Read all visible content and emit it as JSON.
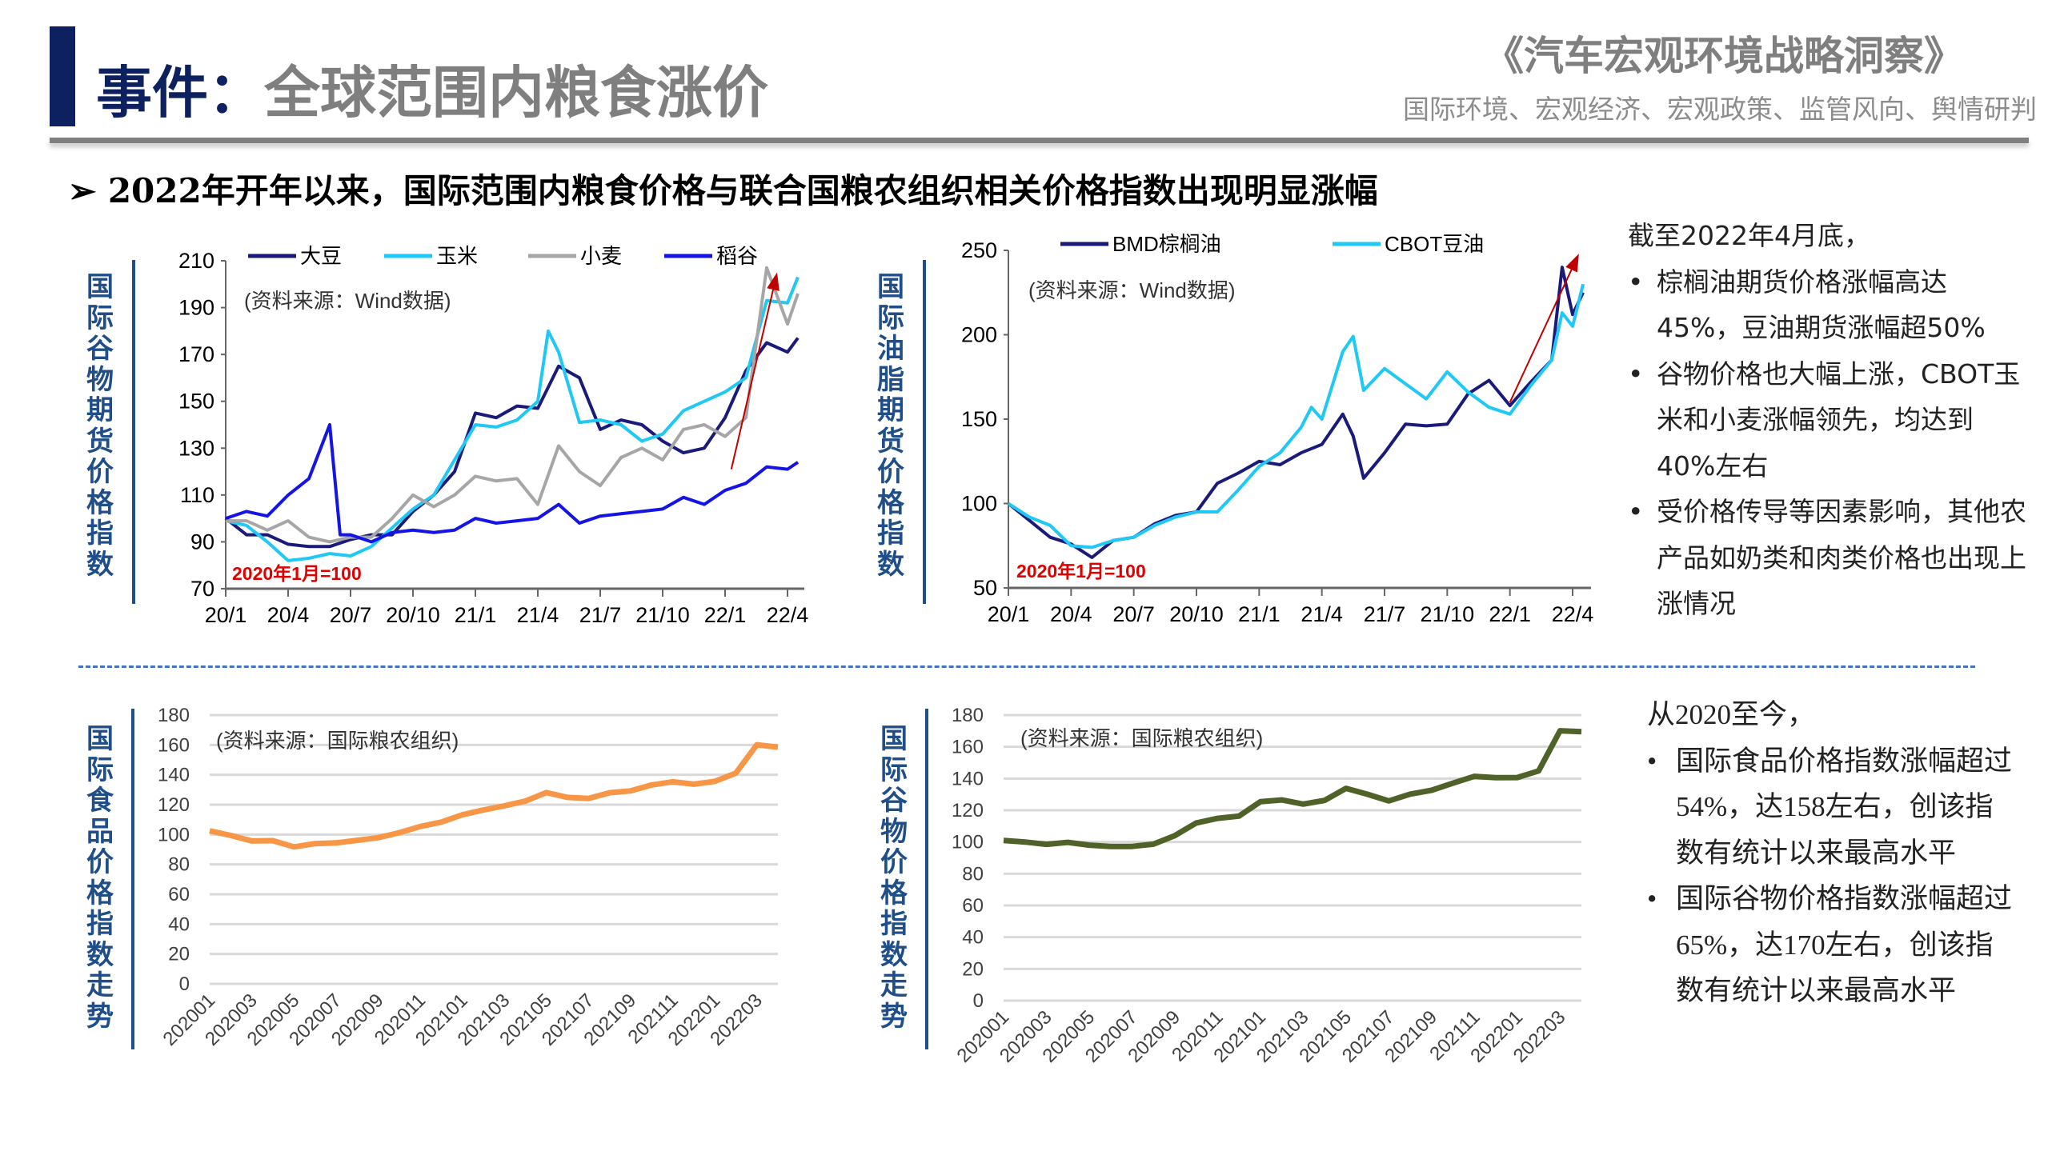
{
  "header": {
    "title_prefix": "事件：",
    "title_main": "全球范围内粮食涨价",
    "brand": "《汽车宏观环境战略洞察》",
    "brand_sub": "国际环境、宏观经济、宏观政策、监管风向、舆情研判"
  },
  "headline": "➢  2022年开年以来，国际范围内粮食价格与联合国粮农组织相关价格指数出现明显涨幅",
  "colors": {
    "navy": "#0d2160",
    "label_blue": "#1f4e89",
    "soy": "#1a1a7a",
    "corn": "#1fc8f5",
    "wheat": "#a6a6a6",
    "rice": "#1414e6",
    "food": "#f79646",
    "cereal": "#4f6228",
    "arrow": "#c00000"
  },
  "right_notes": {
    "intro": "截至2022年4月底，",
    "bullets": [
      "棕榈油期货价格涨幅高达45%，豆油期货涨幅超50%",
      "谷物价格也大幅上涨，CBOT玉米和小麦涨幅领先，均达到40%左右",
      "受价格传导等因素影响，其他农产品如奶类和肉类价格也出现上涨情况"
    ]
  },
  "bottom_notes": {
    "intro": "从2020至今，",
    "bullets": [
      "国际食品价格指数涨幅超过54%，达158左右，创该指数有统计以来最高水平",
      "国际谷物价格指数涨幅超过65%，达170左右，创该指数有统计以来最高水平"
    ]
  },
  "chart_data": [
    {
      "id": "grain",
      "type": "line",
      "ylabel": "国际谷物期货价格指数",
      "source": "(资料来源：Wind数据)",
      "annotation": "2020年1月=100",
      "ylim": [
        70,
        210
      ],
      "yticks": [
        70,
        90,
        110,
        130,
        150,
        170,
        190,
        210
      ],
      "xticks": [
        "20/1",
        "20/4",
        "20/7",
        "20/10",
        "21/1",
        "21/4",
        "21/7",
        "21/10",
        "22/1",
        "22/4"
      ],
      "x_unit": "months since 20/1 (tick labels every 3 months)",
      "legend": "top",
      "grid": false,
      "series": [
        {
          "name": "大豆",
          "color": "#1a1a7a",
          "x": [
            0,
            1,
            2,
            3,
            4,
            5,
            6,
            7,
            8,
            9,
            10,
            11,
            12,
            13,
            14,
            15,
            16,
            17,
            18,
            19,
            20,
            21,
            22,
            23,
            24,
            25,
            26,
            27,
            27.5
          ],
          "values": [
            100,
            93,
            93,
            89,
            88,
            88,
            91,
            93,
            93,
            103,
            110,
            120,
            145,
            143,
            148,
            147,
            165,
            160,
            138,
            142,
            140,
            133,
            128,
            130,
            143,
            163,
            175,
            171,
            177
          ]
        },
        {
          "name": "玉米",
          "color": "#1fc8f5",
          "x": [
            0,
            1,
            2,
            3,
            4,
            5,
            6,
            7,
            8,
            9,
            10,
            11,
            12,
            13,
            14,
            15,
            15.5,
            16,
            17,
            18,
            19,
            20,
            21,
            22,
            23,
            24,
            25,
            26,
            27,
            27.5
          ],
          "values": [
            99,
            97,
            90,
            82,
            83,
            85,
            84,
            88,
            96,
            104,
            110,
            125,
            140,
            139,
            142,
            150,
            180,
            171,
            141,
            142,
            140,
            133,
            136,
            146,
            150,
            154,
            160,
            193,
            192,
            203
          ]
        },
        {
          "name": "小麦",
          "color": "#a6a6a6",
          "x": [
            0,
            1,
            2,
            3,
            4,
            5,
            6,
            7,
            8,
            9,
            10,
            11,
            12,
            13,
            14,
            15,
            16,
            17,
            18,
            19,
            20,
            21,
            22,
            23,
            24,
            25,
            26,
            27,
            27.5
          ],
          "values": [
            99,
            99,
            95,
            99,
            92,
            90,
            92,
            92,
            100,
            110,
            105,
            110,
            118,
            116,
            117,
            106,
            131,
            120,
            114,
            126,
            130,
            125,
            138,
            140,
            135,
            143,
            207,
            183,
            196
          ]
        },
        {
          "name": "稻谷",
          "color": "#1414e6",
          "x": [
            0,
            1,
            2,
            3,
            4,
            5,
            5.5,
            6,
            7,
            8,
            9,
            10,
            11,
            12,
            13,
            14,
            15,
            16,
            17,
            18,
            19,
            20,
            21,
            22,
            23,
            24,
            25,
            26,
            27,
            27.5
          ],
          "values": [
            100,
            103,
            101,
            110,
            117,
            140,
            93,
            93,
            90,
            94,
            95,
            94,
            95,
            100,
            98,
            99,
            100,
            106,
            98,
            101,
            102,
            103,
            104,
            109,
            106,
            112,
            115,
            122,
            121,
            124
          ]
        }
      ],
      "arrow": {
        "from": [
          24.3,
          121
        ],
        "to": [
          26.5,
          205
        ]
      }
    },
    {
      "id": "oil",
      "type": "line",
      "ylabel": "国际油脂期货价格指数",
      "source": "(资料来源：Wind数据)",
      "annotation": "2020年1月=100",
      "ylim": [
        50,
        250
      ],
      "yticks": [
        50,
        100,
        150,
        200,
        250
      ],
      "xticks": [
        "20/1",
        "20/4",
        "20/7",
        "20/10",
        "21/1",
        "21/4",
        "21/7",
        "21/10",
        "22/1",
        "22/4"
      ],
      "legend": "top",
      "grid": false,
      "series": [
        {
          "name": "BMD棕榈油",
          "color": "#1a1a7a",
          "x": [
            0,
            1,
            2,
            3,
            4,
            5,
            6,
            7,
            8,
            9,
            10,
            11,
            12,
            13,
            14,
            15,
            16,
            16.5,
            17,
            18,
            19,
            20,
            21,
            22,
            23,
            24,
            25,
            26,
            26.5,
            27,
            27.5
          ],
          "values": [
            100,
            90,
            80,
            76,
            68,
            78,
            80,
            88,
            93,
            95,
            112,
            118,
            125,
            123,
            130,
            135,
            153,
            140,
            115,
            130,
            147,
            146,
            147,
            165,
            173,
            158,
            172,
            185,
            240,
            212,
            225
          ]
        },
        {
          "name": "CBOT豆油",
          "color": "#1fc8f5",
          "x": [
            0,
            1,
            2,
            3,
            4,
            5,
            6,
            7,
            8,
            9,
            10,
            11,
            12,
            13,
            14,
            14.5,
            15,
            16,
            16.5,
            17,
            18,
            19,
            20,
            21,
            22,
            23,
            24,
            25,
            26,
            26.5,
            27,
            27.5
          ],
          "values": [
            100,
            92,
            87,
            75,
            74,
            78,
            80,
            87,
            92,
            95,
            95,
            108,
            122,
            130,
            145,
            157,
            150,
            190,
            199,
            167,
            180,
            171,
            162,
            178,
            166,
            157,
            153,
            170,
            185,
            213,
            205,
            230
          ]
        }
      ],
      "arrow": {
        "from": [
          24,
          160
        ],
        "to": [
          27.3,
          248
        ]
      }
    },
    {
      "id": "food",
      "type": "line",
      "ylabel": "国际食品价格指数走势",
      "source": "(资料来源：国际粮农组织)",
      "ylim": [
        0,
        180
      ],
      "yticks": [
        0,
        20,
        40,
        60,
        80,
        100,
        120,
        140,
        160,
        180
      ],
      "grid": true,
      "xticks": [
        "202001",
        "202003",
        "202005",
        "202007",
        "202009",
        "202011",
        "202101",
        "202103",
        "202105",
        "202107",
        "202109",
        "202111",
        "202201",
        "202203"
      ],
      "series": [
        {
          "color": "#f79646",
          "values": [
            102.5,
            99.4,
            95.7,
            95.9,
            91.7,
            93.9,
            94.4,
            96.1,
            97.9,
            101.2,
            105.4,
            108.3,
            113.2,
            116.4,
            119.2,
            122.4,
            128.1,
            124.9,
            124.1,
            128.0,
            129.2,
            133.2,
            135.3,
            133.7,
            135.6,
            141.1,
            160.1,
            158.5
          ]
        }
      ]
    },
    {
      "id": "cereal",
      "type": "line",
      "ylabel": "国际谷物价格指数走势",
      "source": "(资料来源：国际粮农组织)",
      "ylim": [
        0,
        180
      ],
      "yticks": [
        0,
        20,
        40,
        60,
        80,
        100,
        120,
        140,
        160,
        180
      ],
      "grid": true,
      "xticks": [
        "202001",
        "202003",
        "202005",
        "202007",
        "202009",
        "202011",
        "202101",
        "202103",
        "202105",
        "202107",
        "202109",
        "202111",
        "202201",
        "202203"
      ],
      "series": [
        {
          "color": "#4f6228",
          "values": [
            101,
            100,
            98.5,
            99.8,
            98,
            97.2,
            97.2,
            98.6,
            104,
            112,
            114.9,
            116.3,
            125.4,
            126.5,
            123.9,
            126.2,
            133.8,
            130.1,
            125.9,
            130.2,
            132.6,
            137.1,
            141.4,
            140.5,
            140.6,
            144.8,
            170.1,
            169.5
          ]
        }
      ]
    }
  ]
}
